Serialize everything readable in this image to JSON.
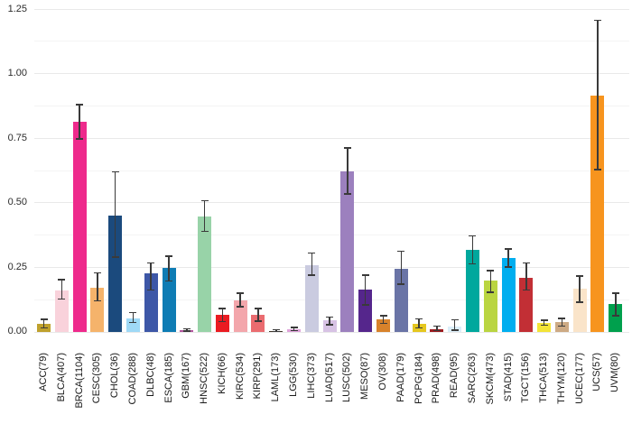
{
  "chart_data": {
    "type": "bar",
    "title": "",
    "xlabel": "",
    "ylabel": "",
    "ylim": [
      0,
      1.25
    ],
    "y_ticks": [
      "0.00",
      "0.25",
      "0.50",
      "0.75",
      "1.00",
      "1.25"
    ],
    "grid": "horizontal gridlines, major every 0.25, minor every 0.125",
    "legend_position": "none",
    "error_bars": true,
    "error_bar_color": "#3a3a3a",
    "background_color": "#ffffff",
    "categories": [
      "ACC(79)",
      "BLCA(407)",
      "BRCA(1104)",
      "CESC(305)",
      "CHOL(36)",
      "COAD(288)",
      "DLBC(48)",
      "ESCA(185)",
      "GBM(167)",
      "HNSC(522)",
      "KICH(66)",
      "KIRC(534)",
      "KIRP(291)",
      "LAML(173)",
      "LGG(530)",
      "LIHC(373)",
      "LUAD(517)",
      "LUSC(502)",
      "MESO(87)",
      "OV(308)",
      "PAAD(179)",
      "PCPG(184)",
      "PRAD(498)",
      "READ(95)",
      "SARC(263)",
      "SKCM(473)",
      "STAD(415)",
      "TGCT(156)",
      "THCA(513)",
      "THYM(120)",
      "UCEC(177)",
      "UCS(57)",
      "UVM(80)"
    ],
    "values": [
      0.031,
      0.162,
      0.815,
      0.171,
      0.451,
      0.054,
      0.228,
      0.247,
      0.007,
      0.448,
      0.066,
      0.123,
      0.066,
      0.005,
      0.012,
      0.26,
      0.045,
      0.622,
      0.164,
      0.048,
      0.246,
      0.031,
      0.012,
      0.022,
      0.316,
      0.199,
      0.288,
      0.211,
      0.036,
      0.037,
      0.168,
      0.916,
      0.107
    ],
    "error_low": [
      0.016,
      0.127,
      0.748,
      0.121,
      0.29,
      0.037,
      0.162,
      0.197,
      0.003,
      0.389,
      0.04,
      0.098,
      0.042,
      0.002,
      0.006,
      0.22,
      0.028,
      0.535,
      0.104,
      0.034,
      0.185,
      0.016,
      0.005,
      0.007,
      0.263,
      0.154,
      0.252,
      0.162,
      0.026,
      0.022,
      0.115,
      0.628,
      0.063
    ],
    "error_high": [
      0.049,
      0.203,
      0.88,
      0.228,
      0.619,
      0.075,
      0.267,
      0.294,
      0.012,
      0.508,
      0.09,
      0.15,
      0.09,
      0.008,
      0.018,
      0.305,
      0.057,
      0.713,
      0.22,
      0.063,
      0.313,
      0.051,
      0.022,
      0.047,
      0.372,
      0.238,
      0.322,
      0.267,
      0.045,
      0.053,
      0.217,
      1.207,
      0.15
    ],
    "bar_colors": [
      "#BFA12D",
      "#F9D2DB",
      "#EE2A8C",
      "#F5B36B",
      "#1B4A7D",
      "#9FD9F6",
      "#3D57A7",
      "#0E7CB4",
      "#B2569E",
      "#98D3A8",
      "#EA1C22",
      "#F3A6AB",
      "#EA6C70",
      "#3F3428",
      "#DFA3DA",
      "#CACBE0",
      "#D7C2E4",
      "#9C80BE",
      "#55268C",
      "#D8822B",
      "#6A74A6",
      "#E5C71F",
      "#9E1C20",
      "#DCEEF9",
      "#00A89D",
      "#BAD541",
      "#00AEEF",
      "#C22F35",
      "#F3E437",
      "#CDAA84",
      "#FAE4C9",
      "#F7941E",
      "#00A04D"
    ]
  }
}
